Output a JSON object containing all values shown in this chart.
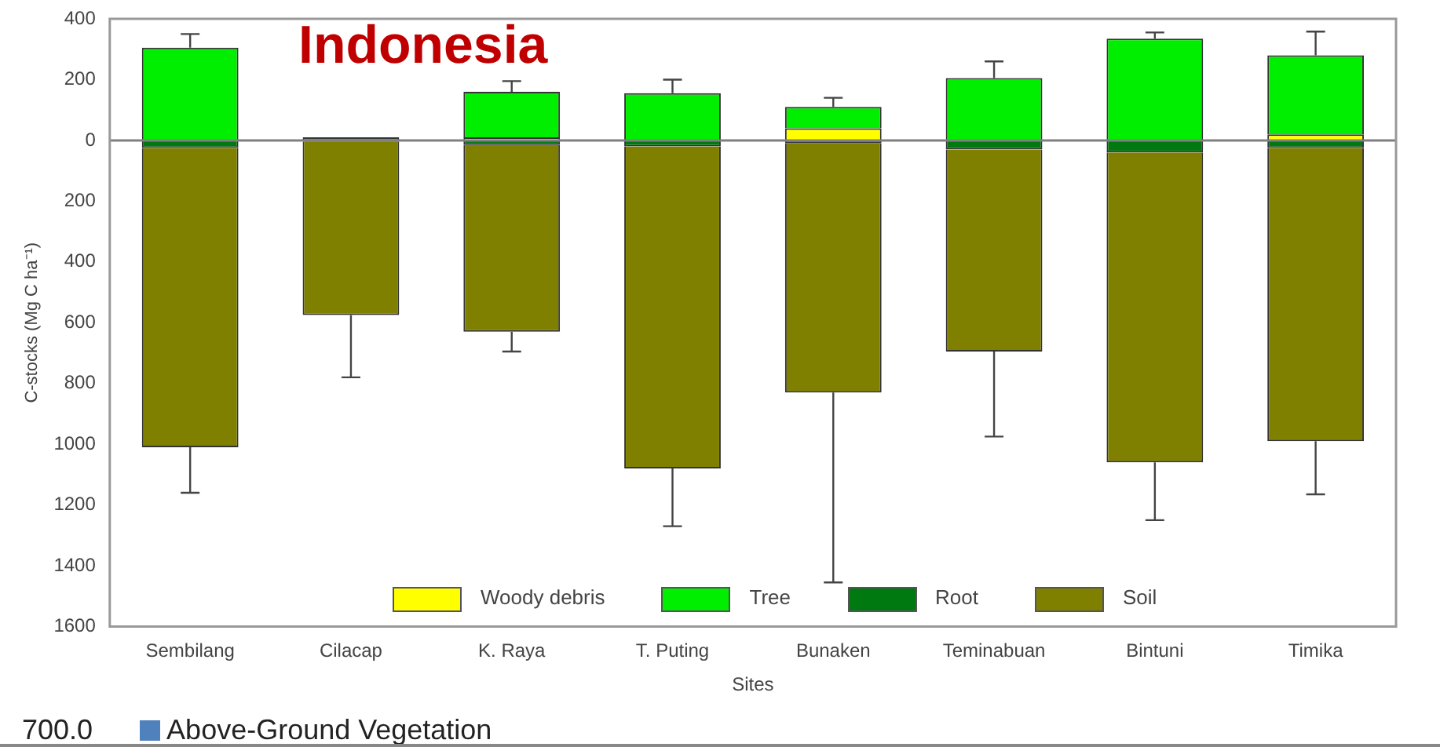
{
  "chart_data": {
    "type": "bar",
    "title": "Indonesia",
    "xlabel": "Sites",
    "ylabel": "C-stocks (Mg C ha⁻¹)",
    "categories": [
      "Sembilang",
      "Cilacap",
      "K. Raya",
      "T. Puting",
      "Bunaken",
      "Teminabuan",
      "Bintuni",
      "Timika"
    ],
    "stacked": true,
    "series": [
      {
        "name": "Woody debris",
        "color": "#ffff00",
        "values": [
          null,
          null,
          10,
          null,
          40,
          null,
          null,
          20
        ]
      },
      {
        "name": "Tree",
        "color": "#00ee00",
        "values": [
          305,
          10,
          150,
          155,
          70,
          205,
          335,
          260
        ],
        "errors": [
          45,
          null,
          35,
          45,
          30,
          55,
          20,
          78
        ]
      },
      {
        "name": "Root",
        "color": "#007a10",
        "values": [
          -25,
          -5,
          -15,
          -20,
          -10,
          -30,
          -40,
          -25
        ]
      },
      {
        "name": "Soil",
        "color": "#808000",
        "values": [
          -985,
          -570,
          -615,
          -1060,
          -820,
          -665,
          -1020,
          -965
        ],
        "errors": [
          150,
          205,
          65,
          190,
          625,
          280,
          190,
          175
        ]
      }
    ],
    "ylim": [
      -1600,
      400
    ],
    "yticks": [
      {
        "value": -1600,
        "label": "1600"
      },
      {
        "value": -1400,
        "label": "1400"
      },
      {
        "value": -1200,
        "label": "1200"
      },
      {
        "value": -1000,
        "label": "1000"
      },
      {
        "value": -800,
        "label": "800"
      },
      {
        "value": -600,
        "label": "600"
      },
      {
        "value": -400,
        "label": "400"
      },
      {
        "value": -200,
        "label": "200"
      },
      0,
      200,
      400
    ],
    "ref_lines": [
      {
        "axis": "y",
        "value": 0,
        "color": "#808080"
      }
    ],
    "grid": false,
    "legend": "bottom",
    "annotations": [
      "700.0",
      "Above-Ground Vegetation"
    ]
  }
}
